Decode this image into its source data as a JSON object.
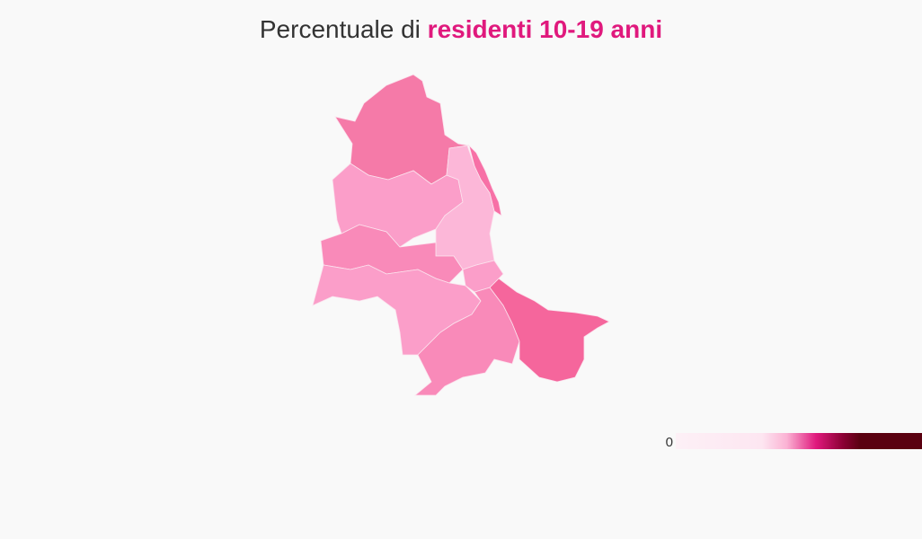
{
  "title": {
    "prefix": "Percentuale di",
    "highlight": "residenti 10-19 anni",
    "highlight_color": "#e0197d"
  },
  "regions": [
    {
      "color": "#f57aa8"
    },
    {
      "color": "#f770a6"
    },
    {
      "color": "#fb9ec9"
    },
    {
      "color": "#fcb7d8"
    },
    {
      "color": "#f98ab9"
    },
    {
      "color": "#fb9ec9"
    },
    {
      "color": "#f98ab9"
    },
    {
      "color": "#f5669c"
    },
    {
      "color": "#fb9ec9"
    }
  ],
  "legend": {
    "ticks": [
      0
    ],
    "colors": [
      "#fdf0f6",
      "#fde6f1",
      "#fbb3d4",
      "#e0197d",
      "#8a0033",
      "#5a0010",
      "#5a0010"
    ]
  }
}
